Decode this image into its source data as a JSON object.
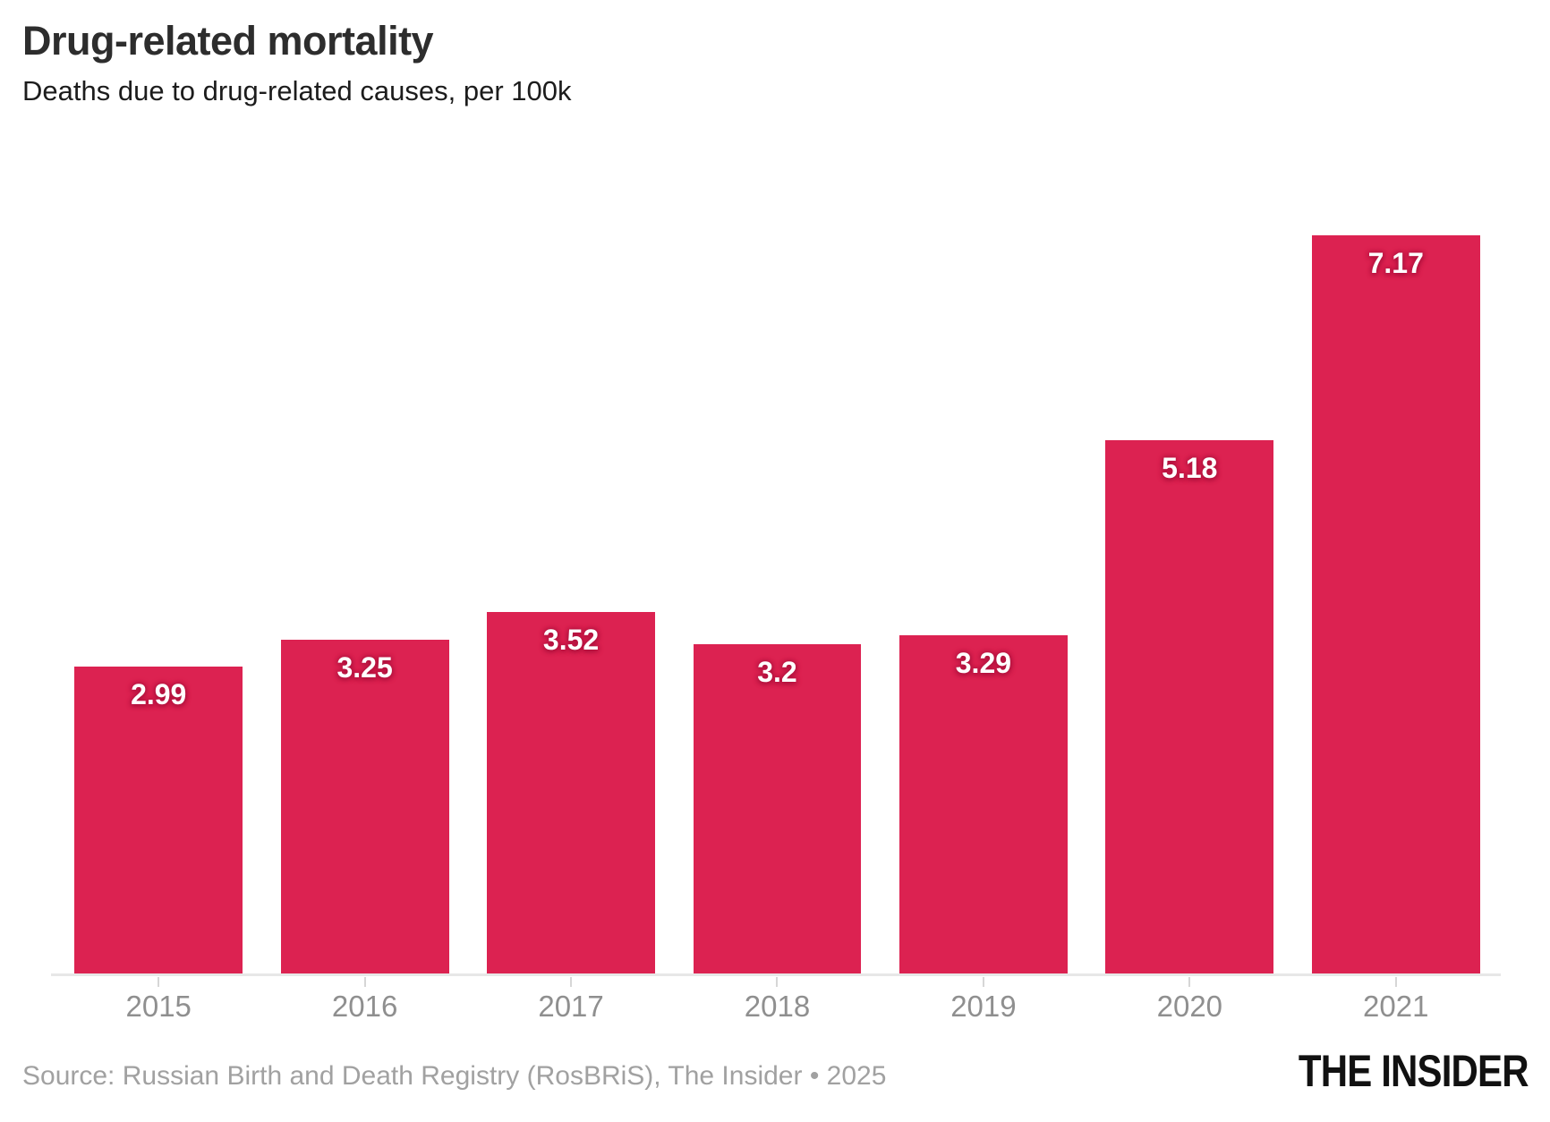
{
  "header": {
    "title": "Drug-related mortality",
    "subtitle": "Deaths due to drug-related causes, per 100k"
  },
  "chart_data": {
    "type": "bar",
    "title": "Drug-related mortality",
    "subtitle": "Deaths due to drug-related causes, per 100k",
    "categories": [
      "2015",
      "2016",
      "2017",
      "2018",
      "2019",
      "2020",
      "2021"
    ],
    "values": [
      2.99,
      3.25,
      3.52,
      3.2,
      3.29,
      5.18,
      7.17
    ],
    "value_labels": [
      "2.99",
      "3.25",
      "3.52",
      "3.2",
      "3.29",
      "5.18",
      "7.17"
    ],
    "xlabel": "",
    "ylabel": "",
    "ylim": [
      0,
      7.17
    ],
    "grid": false,
    "legend": false,
    "y_axis_visible": false,
    "bar_color": "#dc2251",
    "value_label_color": "#ffffff",
    "axis_line_color": "#e7e7e7",
    "tick_label_color": "#8f8f8f"
  },
  "footer": {
    "source": "Source: Russian Birth and Death Registry (RosBRiS), The Insider • 2025",
    "logo": "THE INSIDER"
  }
}
